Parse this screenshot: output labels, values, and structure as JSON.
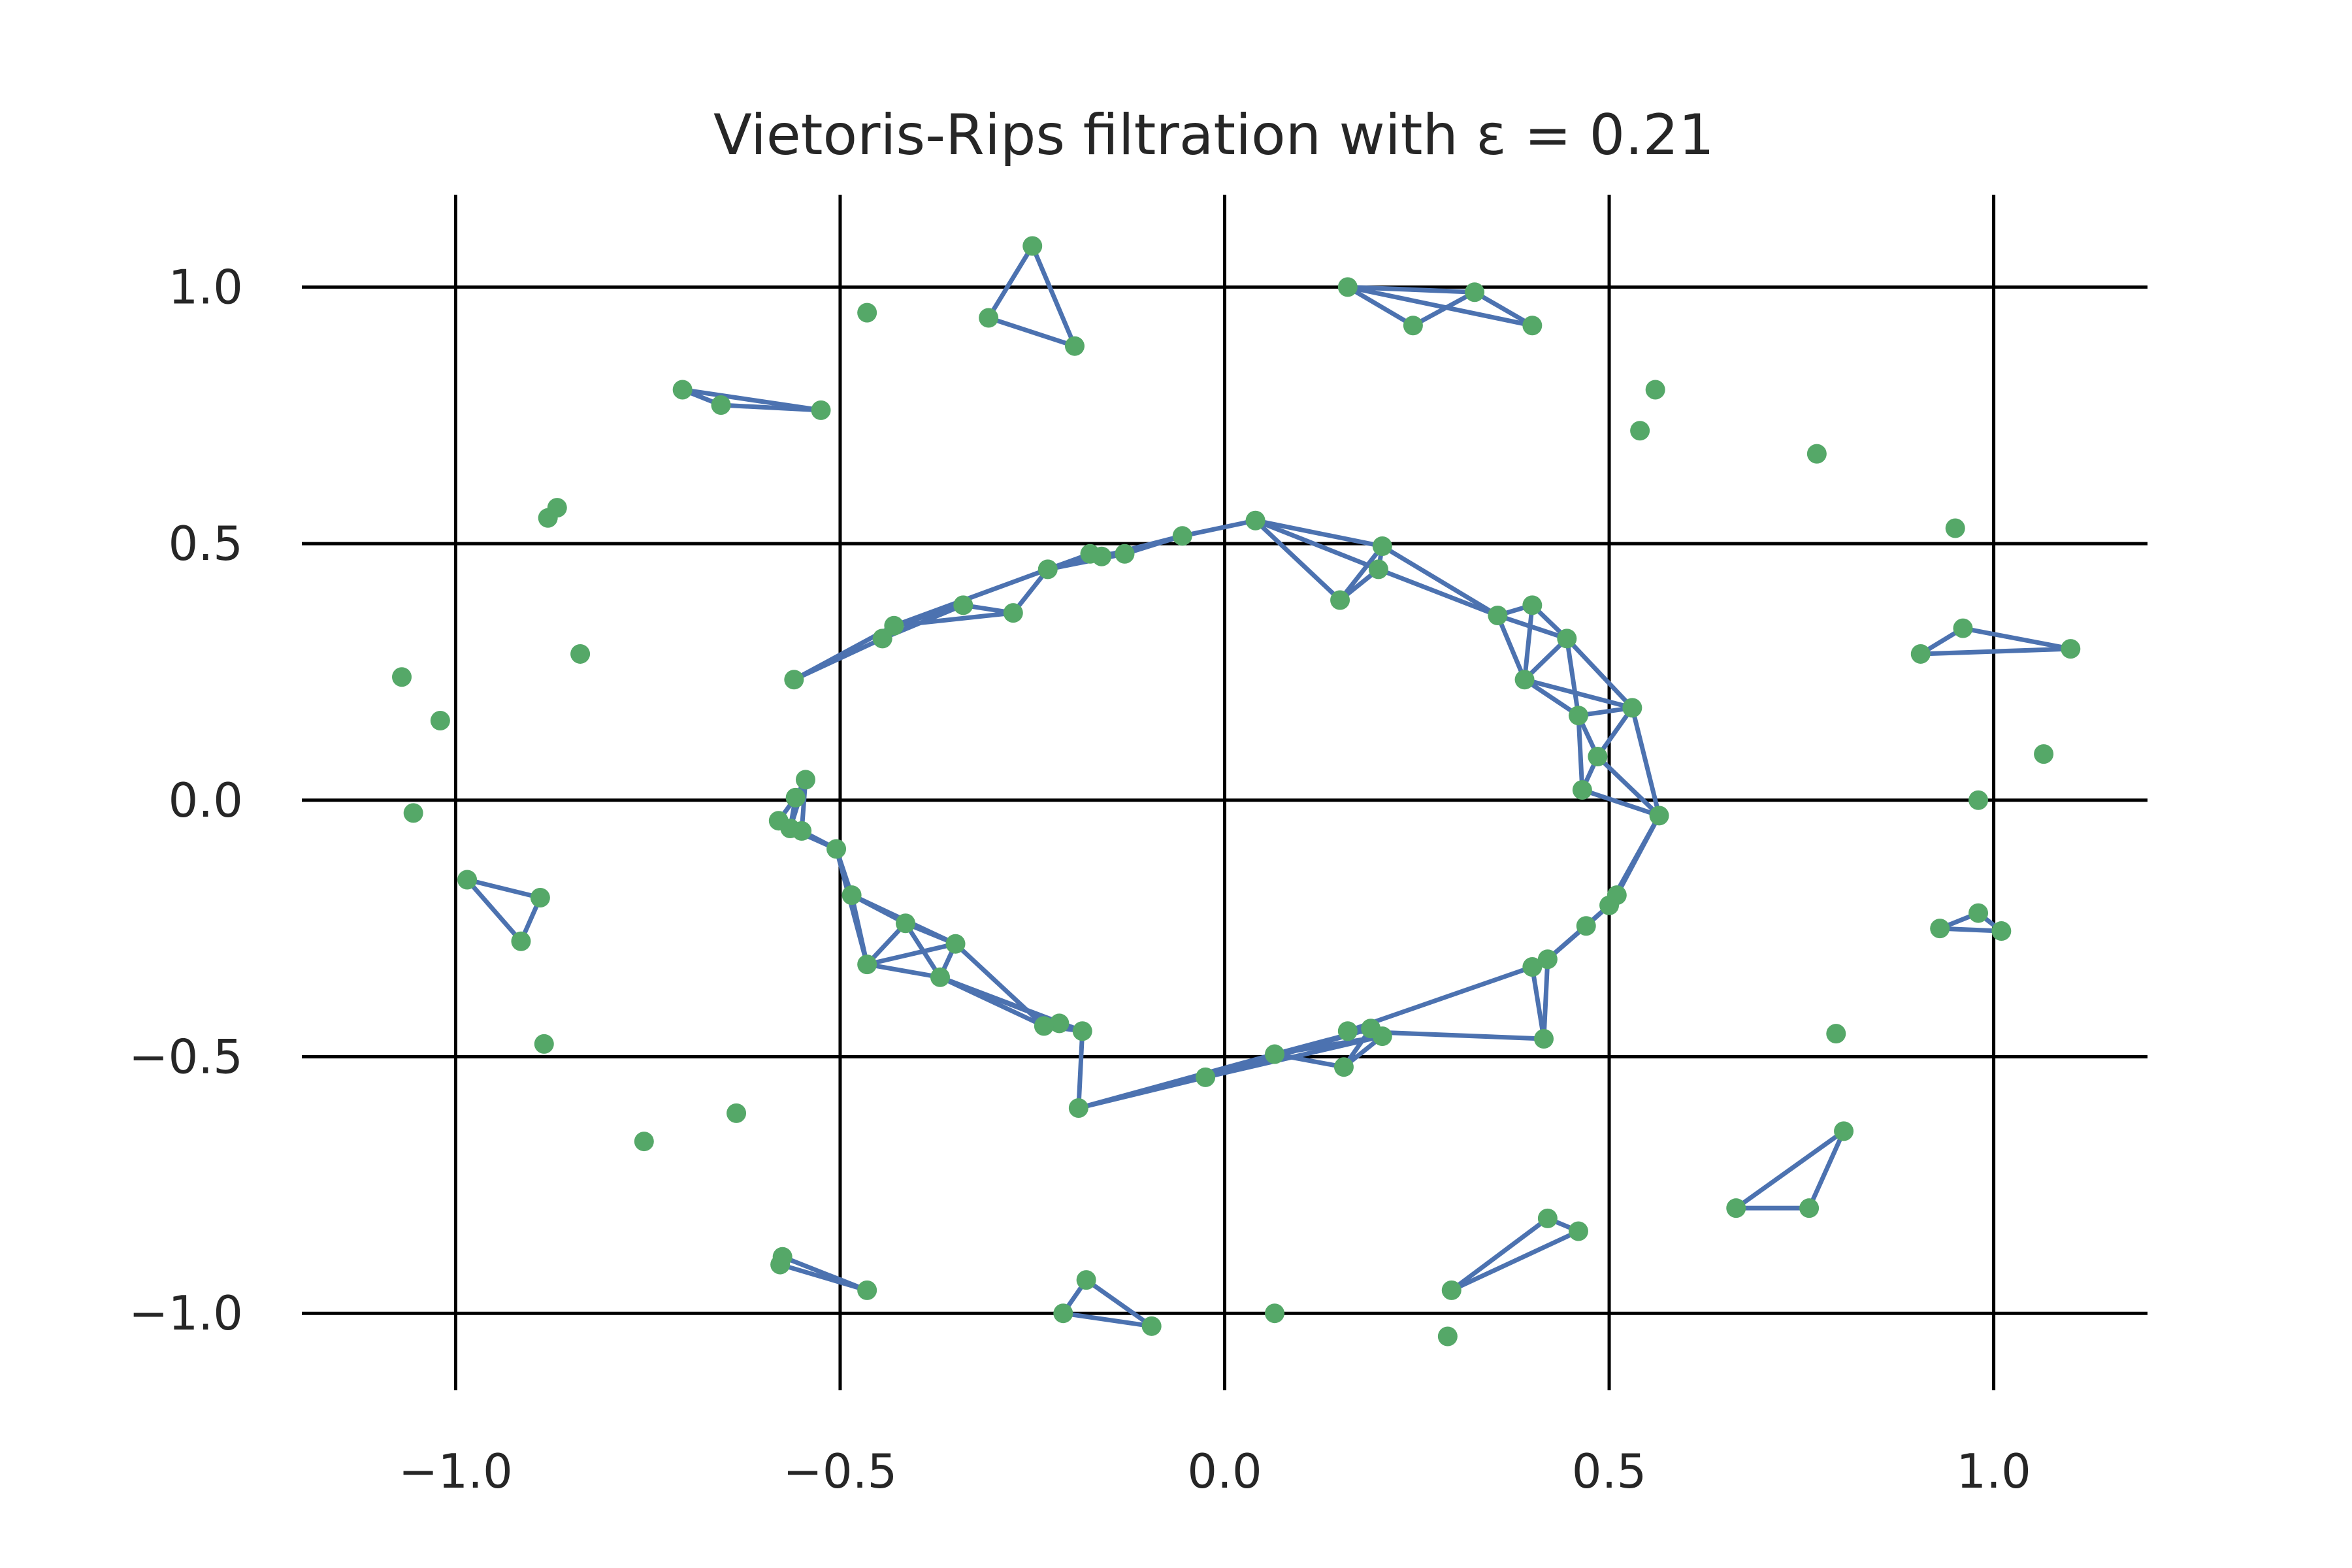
{
  "chart_data": {
    "type": "scatter",
    "title": "Vietoris-Rips filtration with ε = 0.21",
    "xlabel": "",
    "ylabel": "",
    "xlim": [
      -1.2,
      1.2
    ],
    "ylim": [
      -1.15,
      1.18
    ],
    "xticks": [
      -1.0,
      -0.5,
      0.0,
      0.5,
      1.0
    ],
    "yticks": [
      -1.0,
      -0.5,
      0.0,
      0.5,
      1.0
    ],
    "xtick_labels": [
      "−1.0",
      "−0.5",
      "0.0",
      "0.5",
      "1.0"
    ],
    "ytick_labels": [
      "−1.0",
      "−0.5",
      "0.0",
      "0.5",
      "1.0"
    ],
    "grid": true,
    "epsilon": 0.21,
    "colors": {
      "points": "#55a868",
      "edges": "#4c72b0",
      "grid": "#000000",
      "text": "#262626"
    },
    "points": [
      [
        -0.25,
        1.08
      ],
      [
        -0.307,
        0.94
      ],
      [
        -0.195,
        0.885
      ],
      [
        -0.465,
        0.95
      ],
      [
        -0.705,
        0.8
      ],
      [
        -0.655,
        0.77
      ],
      [
        -0.525,
        0.76
      ],
      [
        -0.88,
        0.55
      ],
      [
        -0.868,
        0.57
      ],
      [
        -0.838,
        0.285
      ],
      [
        -1.07,
        0.24
      ],
      [
        -1.02,
        0.155
      ],
      [
        -1.055,
        -0.025
      ],
      [
        -0.985,
        -0.155
      ],
      [
        -0.89,
        -0.19
      ],
      [
        -0.915,
        -0.275
      ],
      [
        -0.885,
        -0.475
      ],
      [
        -0.755,
        -0.665
      ],
      [
        -0.635,
        -0.61
      ],
      [
        -0.575,
        -0.89
      ],
      [
        -0.578,
        -0.905
      ],
      [
        -0.465,
        -0.955
      ],
      [
        -0.21,
        -1.0
      ],
      [
        -0.18,
        -0.935
      ],
      [
        -0.095,
        -1.025
      ],
      [
        0.065,
        -1.0
      ],
      [
        0.29,
        -1.045
      ],
      [
        0.16,
        1.0
      ],
      [
        0.245,
        0.925
      ],
      [
        0.325,
        0.99
      ],
      [
        0.4,
        0.925
      ],
      [
        0.54,
        0.72
      ],
      [
        0.56,
        0.8
      ],
      [
        0.77,
        0.675
      ],
      [
        0.95,
        0.53
      ],
      [
        0.905,
        0.285
      ],
      [
        0.96,
        0.335
      ],
      [
        1.1,
        0.295
      ],
      [
        1.065,
        0.09
      ],
      [
        0.98,
        0.0
      ],
      [
        0.93,
        -0.25
      ],
      [
        0.98,
        -0.22
      ],
      [
        1.01,
        -0.255
      ],
      [
        0.795,
        -0.455
      ],
      [
        0.805,
        -0.645
      ],
      [
        0.665,
        -0.795
      ],
      [
        0.76,
        -0.795
      ],
      [
        0.295,
        -0.955
      ],
      [
        0.42,
        -0.815
      ],
      [
        0.46,
        -0.84
      ],
      [
        -0.56,
        0.235
      ],
      [
        -0.445,
        0.315
      ],
      [
        -0.43,
        0.34
      ],
      [
        -0.34,
        0.38
      ],
      [
        -0.275,
        0.365
      ],
      [
        -0.23,
        0.45
      ],
      [
        -0.175,
        0.48
      ],
      [
        -0.16,
        0.475
      ],
      [
        -0.13,
        0.48
      ],
      [
        -0.055,
        0.515
      ],
      [
        0.04,
        0.545
      ],
      [
        0.15,
        0.39
      ],
      [
        0.2,
        0.45
      ],
      [
        0.205,
        0.495
      ],
      [
        0.355,
        0.36
      ],
      [
        0.4,
        0.38
      ],
      [
        0.445,
        0.315
      ],
      [
        0.39,
        0.235
      ],
      [
        0.46,
        0.165
      ],
      [
        0.53,
        0.18
      ],
      [
        0.485,
        0.085
      ],
      [
        0.465,
        0.02
      ],
      [
        0.565,
        -0.03
      ],
      [
        0.51,
        -0.185
      ],
      [
        0.5,
        -0.205
      ],
      [
        0.47,
        -0.245
      ],
      [
        0.42,
        -0.31
      ],
      [
        0.4,
        -0.325
      ],
      [
        0.415,
        -0.465
      ],
      [
        0.16,
        -0.45
      ],
      [
        0.19,
        -0.445
      ],
      [
        0.205,
        -0.46
      ],
      [
        0.155,
        -0.52
      ],
      [
        0.065,
        -0.495
      ],
      [
        -0.025,
        -0.54
      ],
      [
        -0.19,
        -0.6
      ],
      [
        -0.185,
        -0.45
      ],
      [
        -0.215,
        -0.435
      ],
      [
        -0.235,
        -0.44
      ],
      [
        -0.37,
        -0.345
      ],
      [
        -0.35,
        -0.28
      ],
      [
        -0.415,
        -0.24
      ],
      [
        -0.465,
        -0.32
      ],
      [
        -0.485,
        -0.185
      ],
      [
        -0.505,
        -0.095
      ],
      [
        -0.55,
        -0.06
      ],
      [
        -0.565,
        -0.055
      ],
      [
        -0.58,
        -0.04
      ],
      [
        -0.558,
        0.005
      ],
      [
        -0.545,
        0.04
      ]
    ],
    "edges": [
      [
        0,
        1
      ],
      [
        1,
        2
      ],
      [
        0,
        2
      ],
      [
        4,
        5
      ],
      [
        5,
        6
      ],
      [
        4,
        6
      ],
      [
        13,
        14
      ],
      [
        14,
        15
      ],
      [
        13,
        15
      ],
      [
        19,
        21
      ],
      [
        20,
        21
      ],
      [
        19,
        20
      ],
      [
        22,
        23
      ],
      [
        23,
        24
      ],
      [
        22,
        24
      ],
      [
        27,
        28
      ],
      [
        28,
        29
      ],
      [
        29,
        30
      ],
      [
        27,
        30
      ],
      [
        27,
        29
      ],
      [
        35,
        36
      ],
      [
        36,
        37
      ],
      [
        35,
        37
      ],
      [
        40,
        41
      ],
      [
        41,
        42
      ],
      [
        40,
        42
      ],
      [
        44,
        45
      ],
      [
        45,
        46
      ],
      [
        44,
        46
      ],
      [
        47,
        48
      ],
      [
        47,
        49
      ],
      [
        48,
        49
      ],
      [
        50,
        51
      ],
      [
        50,
        52
      ],
      [
        51,
        52
      ],
      [
        51,
        53
      ],
      [
        52,
        53
      ],
      [
        52,
        54
      ],
      [
        53,
        54
      ],
      [
        52,
        55
      ],
      [
        54,
        55
      ],
      [
        55,
        56
      ],
      [
        55,
        57
      ],
      [
        56,
        57
      ],
      [
        56,
        58
      ],
      [
        57,
        58
      ],
      [
        55,
        58
      ],
      [
        58,
        59
      ],
      [
        57,
        59
      ],
      [
        59,
        60
      ],
      [
        60,
        61
      ],
      [
        60,
        62
      ],
      [
        60,
        63
      ],
      [
        61,
        62
      ],
      [
        62,
        63
      ],
      [
        61,
        63
      ],
      [
        63,
        64
      ],
      [
        62,
        64
      ],
      [
        64,
        65
      ],
      [
        64,
        66
      ],
      [
        64,
        67
      ],
      [
        65,
        66
      ],
      [
        65,
        67
      ],
      [
        66,
        67
      ],
      [
        66,
        68
      ],
      [
        66,
        69
      ],
      [
        67,
        68
      ],
      [
        67,
        69
      ],
      [
        68,
        69
      ],
      [
        68,
        70
      ],
      [
        69,
        70
      ],
      [
        68,
        71
      ],
      [
        70,
        71
      ],
      [
        69,
        72
      ],
      [
        70,
        72
      ],
      [
        71,
        72
      ],
      [
        72,
        73
      ],
      [
        73,
        74
      ],
      [
        72,
        74
      ],
      [
        74,
        75
      ],
      [
        75,
        76
      ],
      [
        74,
        76
      ],
      [
        76,
        77
      ],
      [
        77,
        78
      ],
      [
        76,
        78
      ],
      [
        77,
        79
      ],
      [
        78,
        79
      ],
      [
        80,
        81
      ],
      [
        81,
        82
      ],
      [
        80,
        82
      ],
      [
        80,
        83
      ],
      [
        81,
        83
      ],
      [
        82,
        83
      ],
      [
        80,
        84
      ],
      [
        81,
        84
      ],
      [
        84,
        85
      ],
      [
        83,
        85
      ],
      [
        85,
        86
      ],
      [
        86,
        87
      ],
      [
        86,
        88
      ],
      [
        86,
        89
      ],
      [
        87,
        88
      ],
      [
        88,
        89
      ],
      [
        87,
        89
      ],
      [
        88,
        90
      ],
      [
        89,
        90
      ],
      [
        89,
        91
      ],
      [
        89,
        92
      ],
      [
        90,
        91
      ],
      [
        90,
        92
      ],
      [
        91,
        92
      ],
      [
        91,
        93
      ],
      [
        92,
        93
      ],
      [
        93,
        94
      ],
      [
        92,
        94
      ],
      [
        93,
        90
      ],
      [
        94,
        95
      ],
      [
        94,
        96
      ],
      [
        94,
        97
      ],
      [
        95,
        96
      ],
      [
        95,
        97
      ],
      [
        96,
        97
      ],
      [
        96,
        98
      ],
      [
        97,
        98
      ],
      [
        98,
        99
      ],
      [
        95,
        99
      ],
      [
        96,
        99
      ]
    ]
  }
}
